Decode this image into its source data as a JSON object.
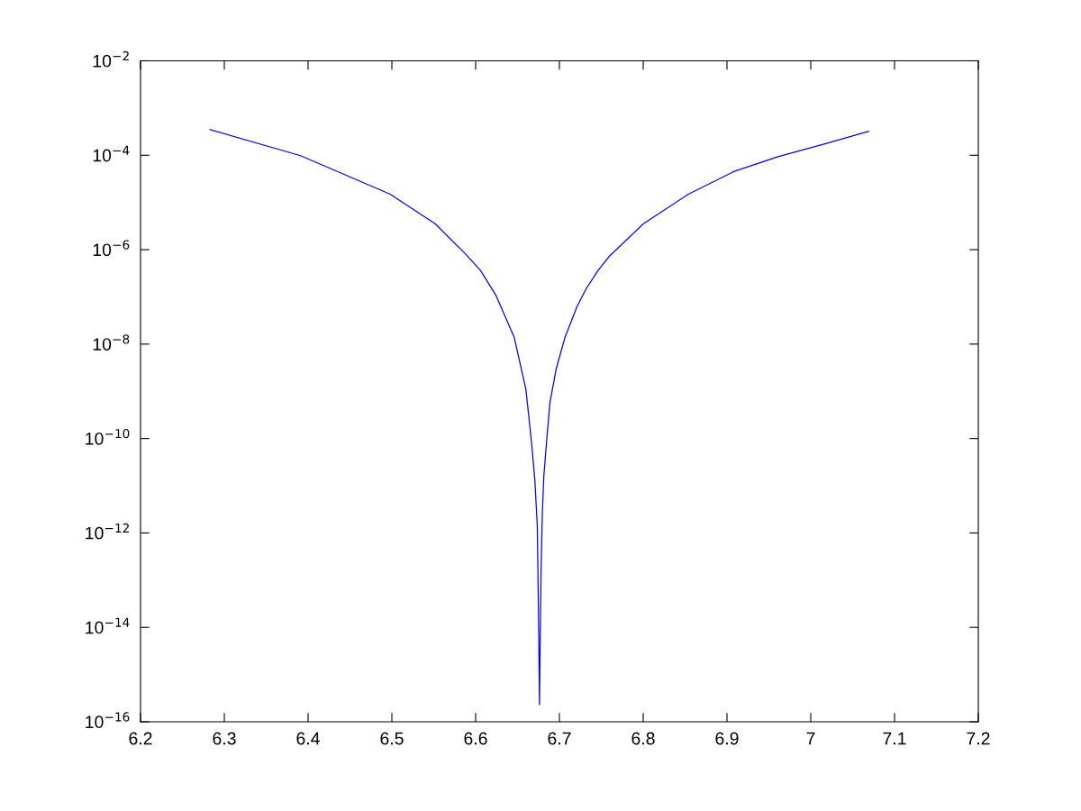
{
  "chart_data": {
    "type": "line",
    "log": "y",
    "grid": false,
    "marker": "none",
    "line_style": "solid",
    "x": [
      6.283,
      6.391,
      6.498,
      6.552,
      6.588,
      6.606,
      6.624,
      6.646,
      6.66,
      6.667,
      6.6707,
      6.6736,
      6.675,
      6.6762,
      6.6769,
      6.678,
      6.6797,
      6.6815,
      6.685,
      6.6887,
      6.696,
      6.7067,
      6.721,
      6.732,
      6.746,
      6.76,
      6.8,
      6.854,
      6.908,
      6.961,
      7.015,
      7.069
    ],
    "series": [
      {
        "color": "#0000ff",
        "values": [
          0.00035,
          9.8e-05,
          1.5e-05,
          3.5e-06,
          8.1e-07,
          3.6e-07,
          1.1e-07,
          1.4e-08,
          1.1e-09,
          7.4e-11,
          1.3e-11,
          1.4e-12,
          2.3e-14,
          2.3e-16,
          3.5e-15,
          1.3e-13,
          3e-12,
          1.7e-11,
          1e-10,
          5.8e-10,
          2.9e-09,
          1.4e-08,
          6.2e-08,
          1.5e-07,
          3.6e-07,
          7.4e-07,
          3.5e-06,
          1.5e-05,
          4.5e-05,
          9.3e-05,
          0.00017,
          0.00032
        ]
      }
    ],
    "xlim": [
      6.2,
      7.2
    ],
    "xticks": [
      6.2,
      6.3,
      6.4,
      6.5,
      6.6,
      6.7,
      6.8,
      6.9,
      7,
      7.1,
      7.2
    ],
    "ylim": [
      1e-16,
      0.01
    ],
    "yticks": [
      {
        "value": 1e-16,
        "label": "10$^{−16}$"
      },
      {
        "value": 1e-14,
        "label": "10$^{−14}$"
      },
      {
        "value": 1e-12,
        "label": "10$^{−12}$"
      },
      {
        "value": 1e-10,
        "label": "10$^{−10}$"
      },
      {
        "value": 1e-08,
        "label": "10$^{−8}$"
      },
      {
        "value": 1e-06,
        "label": "10$^{−6}$"
      },
      {
        "value": 0.0001,
        "label": "10$^{−4}$"
      },
      {
        "value": 0.01,
        "label": "10$^{−2}$"
      }
    ]
  }
}
